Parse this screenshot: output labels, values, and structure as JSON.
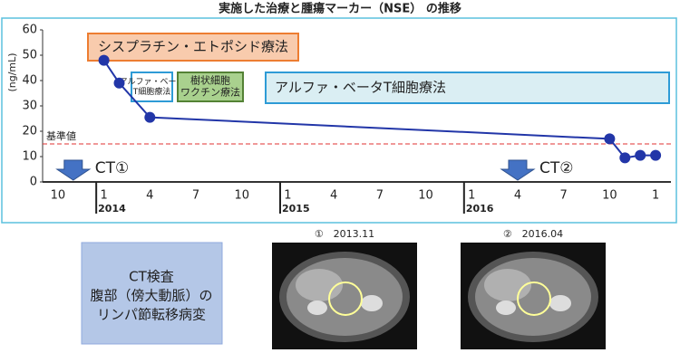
{
  "chart_data": {
    "type": "line",
    "title": "実施した治療と腫瘍マーカー（NSE） の推移",
    "y_label": "(ng/mL)",
    "x": [
      "2014-01",
      "2014-02",
      "2014-04",
      "2016-10",
      "2016-11",
      "2016-12",
      "2017-01"
    ],
    "values": [
      48,
      39,
      25.5,
      17,
      9.5,
      10.5,
      10.5
    ],
    "color": "#2236a8",
    "xlim": [
      "2013-09",
      "2017-02"
    ],
    "xticks": [
      {
        "value": "2013-10",
        "label": "10"
      },
      {
        "value": "2014-01",
        "label": "1"
      },
      {
        "value": "2014-04",
        "label": "4"
      },
      {
        "value": "2014-07",
        "label": "7"
      },
      {
        "value": "2014-10",
        "label": "10"
      },
      {
        "value": "2015-01",
        "label": "1"
      },
      {
        "value": "2015-04",
        "label": "4"
      },
      {
        "value": "2015-07",
        "label": "7"
      },
      {
        "value": "2015-10",
        "label": "10"
      },
      {
        "value": "2016-01",
        "label": "1"
      },
      {
        "value": "2016-04",
        "label": "4"
      },
      {
        "value": "2016-07",
        "label": "7"
      },
      {
        "value": "2016-10",
        "label": "10"
      },
      {
        "value": "2017-01",
        "label": "1"
      }
    ],
    "year_ticks": [
      {
        "value": "2014-01",
        "label": "2014"
      },
      {
        "value": "2015-01",
        "label": "2015"
      },
      {
        "value": "2016-01",
        "label": "2016"
      }
    ],
    "ylim": [
      0,
      60
    ],
    "yticks": [
      0,
      10,
      20,
      30,
      40,
      50,
      60
    ],
    "reference_line": {
      "value": 15,
      "label": "基準値",
      "color": "#e03030"
    },
    "annotations": [
      {
        "lines": [
          "シスプラチン・エトポシド療法"
        ]
      },
      {
        "lines": [
          "アルファ・ベータ",
          "T細胞療法"
        ]
      },
      {
        "lines": [
          "樹状細胞",
          "ワクチン療法"
        ]
      },
      {
        "lines": [
          "アルファ・ベータT細胞療法"
        ]
      }
    ],
    "ct_markers": [
      {
        "x": "2013-11",
        "label": "CT①"
      },
      {
        "x": "2016-04",
        "label": "CT②"
      }
    ]
  },
  "panel": {
    "lines": [
      "CT検査",
      "腹部（傍大動脈）の",
      "リンパ節転移病変"
    ],
    "images": [
      {
        "caption": "①　2013.11"
      },
      {
        "caption": "②　2016.04"
      }
    ]
  }
}
